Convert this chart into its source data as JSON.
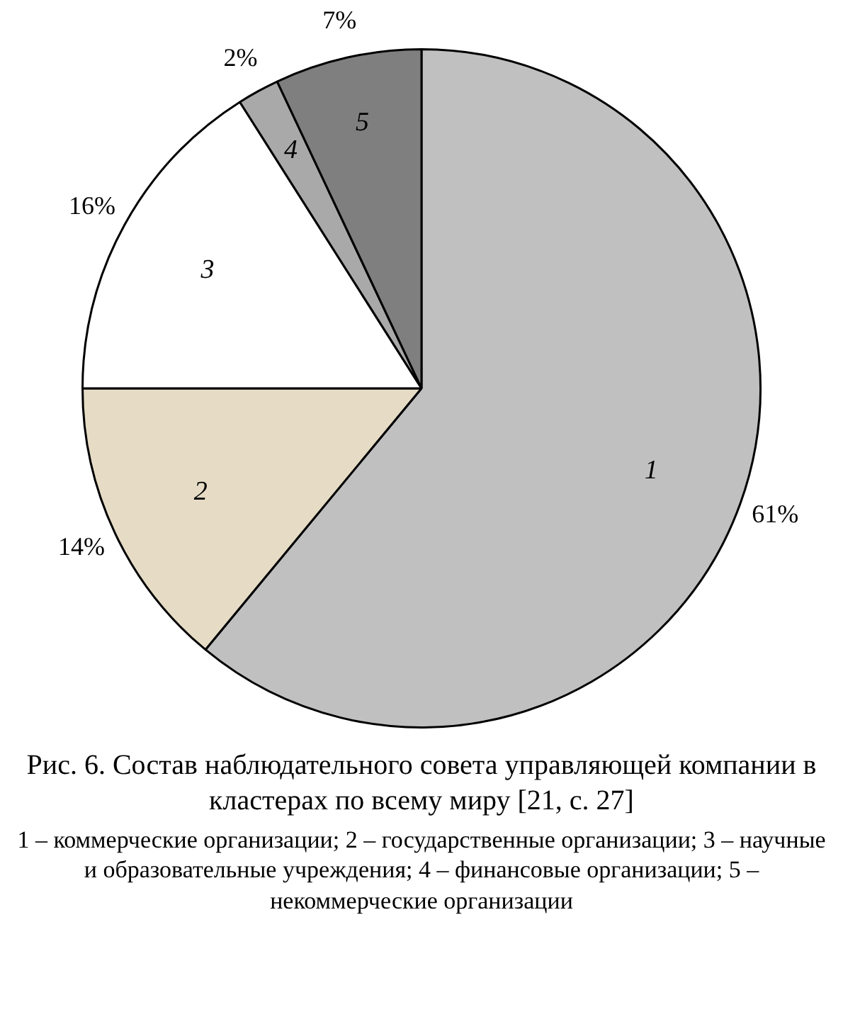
{
  "chart_data": {
    "type": "pie",
    "title": "Рис. 6. Состав наблюдательного совета управляющей компании в кластерах по всему миру [21, с. 27]",
    "categories": [
      "1",
      "2",
      "3",
      "4",
      "5"
    ],
    "values": [
      61,
      14,
      16,
      2,
      7
    ],
    "colors": [
      "#c0c0c0",
      "#e6dcc6",
      "#ffffff",
      "#a9a9a9",
      "#7f7f7f"
    ],
    "value_labels": [
      "61%",
      "14%",
      "16%",
      "2%",
      "7%"
    ],
    "annotations": [
      "1 – коммерческие организации; 2 – государственные организации; 3 – научные и образовательные учреждения; 4 – финансовые организации; 5 – некоммерческие организации"
    ]
  }
}
